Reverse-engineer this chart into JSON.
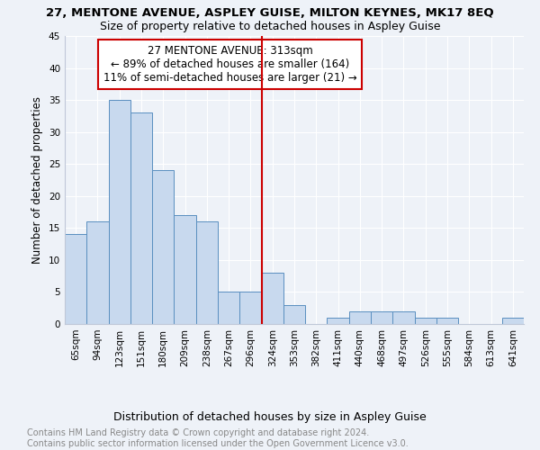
{
  "title": "27, MENTONE AVENUE, ASPLEY GUISE, MILTON KEYNES, MK17 8EQ",
  "subtitle": "Size of property relative to detached houses in Aspley Guise",
  "xlabel": "Distribution of detached houses by size in Aspley Guise",
  "ylabel": "Number of detached properties",
  "categories": [
    "65sqm",
    "94sqm",
    "123sqm",
    "151sqm",
    "180sqm",
    "209sqm",
    "238sqm",
    "267sqm",
    "296sqm",
    "324sqm",
    "353sqm",
    "382sqm",
    "411sqm",
    "440sqm",
    "468sqm",
    "497sqm",
    "526sqm",
    "555sqm",
    "584sqm",
    "613sqm",
    "641sqm"
  ],
  "values": [
    14,
    16,
    35,
    33,
    24,
    17,
    16,
    5,
    5,
    8,
    3,
    0,
    1,
    2,
    2,
    2,
    1,
    1,
    0,
    0,
    1
  ],
  "bar_color": "#c8d9ee",
  "bar_edge_color": "#5a8fc0",
  "vline_x_index": 9,
  "vline_color": "#cc0000",
  "annotation_text": "27 MENTONE AVENUE: 313sqm\n← 89% of detached houses are smaller (164)\n11% of semi-detached houses are larger (21) →",
  "annotation_box_facecolor": "#ffffff",
  "annotation_box_edgecolor": "#cc0000",
  "ylim": [
    0,
    45
  ],
  "yticks": [
    0,
    5,
    10,
    15,
    20,
    25,
    30,
    35,
    40,
    45
  ],
  "background_color": "#eef2f8",
  "grid_color": "#ffffff",
  "title_fontsize": 9.5,
  "subtitle_fontsize": 9,
  "xlabel_fontsize": 9,
  "ylabel_fontsize": 8.5,
  "tick_fontsize": 7.5,
  "annotation_fontsize": 8.5,
  "footer_fontsize": 7,
  "footer": "Contains HM Land Registry data © Crown copyright and database right 2024.\nContains public sector information licensed under the Open Government Licence v3.0."
}
